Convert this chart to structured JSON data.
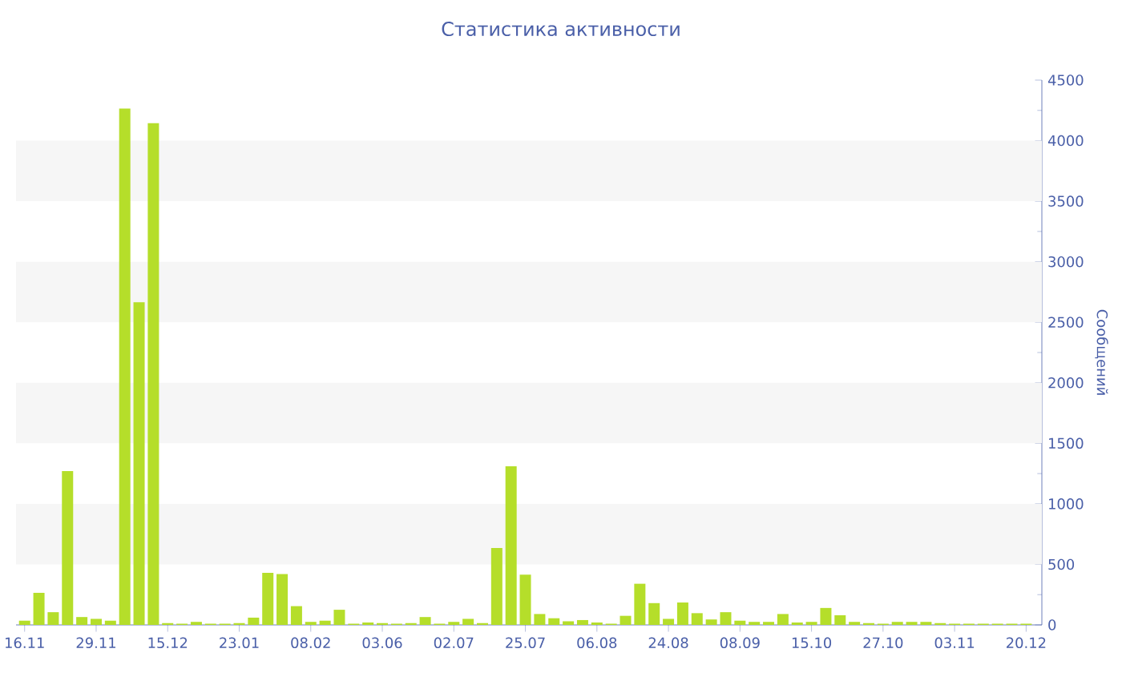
{
  "chart_data": {
    "type": "bar",
    "title": "Статистика активности",
    "ylabel": "Сообщений",
    "categories": [
      "16.11",
      null,
      null,
      null,
      null,
      "29.11",
      null,
      null,
      null,
      null,
      "15.12",
      null,
      null,
      null,
      null,
      "23.01",
      null,
      null,
      null,
      null,
      "08.02",
      null,
      null,
      null,
      null,
      "03.06",
      null,
      null,
      null,
      null,
      "02.07",
      null,
      null,
      null,
      null,
      "25.07",
      null,
      null,
      null,
      null,
      "06.08",
      null,
      null,
      null,
      null,
      "24.08",
      null,
      null,
      null,
      null,
      "08.09",
      null,
      null,
      null,
      null,
      "15.10",
      null,
      null,
      null,
      null,
      "27.10",
      null,
      null,
      null,
      null,
      "03.11",
      null,
      null,
      null,
      null,
      "20.12"
    ],
    "values": [
      35,
      265,
      105,
      1270,
      65,
      50,
      35,
      4265,
      2665,
      4145,
      15,
      10,
      25,
      10,
      10,
      15,
      60,
      430,
      420,
      155,
      25,
      35,
      125,
      10,
      20,
      15,
      10,
      15,
      65,
      10,
      25,
      50,
      15,
      635,
      1310,
      415,
      90,
      55,
      30,
      40,
      20,
      10,
      75,
      340,
      180,
      50,
      185,
      97,
      45,
      105,
      35,
      25,
      25,
      90,
      20,
      25,
      140,
      80,
      25,
      15,
      10,
      25,
      25,
      25,
      15,
      10,
      10,
      10,
      10,
      10,
      10
    ],
    "color": "#b5de2a",
    "ylim": [
      0,
      4500
    ],
    "yticks": [
      0,
      500,
      1000,
      1500,
      2000,
      2500,
      3000,
      3500,
      4000,
      4500
    ],
    "bands": [
      {
        "axis": "y",
        "from": 500,
        "to": 1000,
        "color": "#f6f6f6"
      },
      {
        "axis": "y",
        "from": 1500,
        "to": 2000,
        "color": "#f6f6f6"
      },
      {
        "axis": "y",
        "from": 2500,
        "to": 3000,
        "color": "#f6f6f6"
      },
      {
        "axis": "y",
        "from": 3500,
        "to": 4000,
        "color": "#f6f6f6"
      }
    ]
  }
}
